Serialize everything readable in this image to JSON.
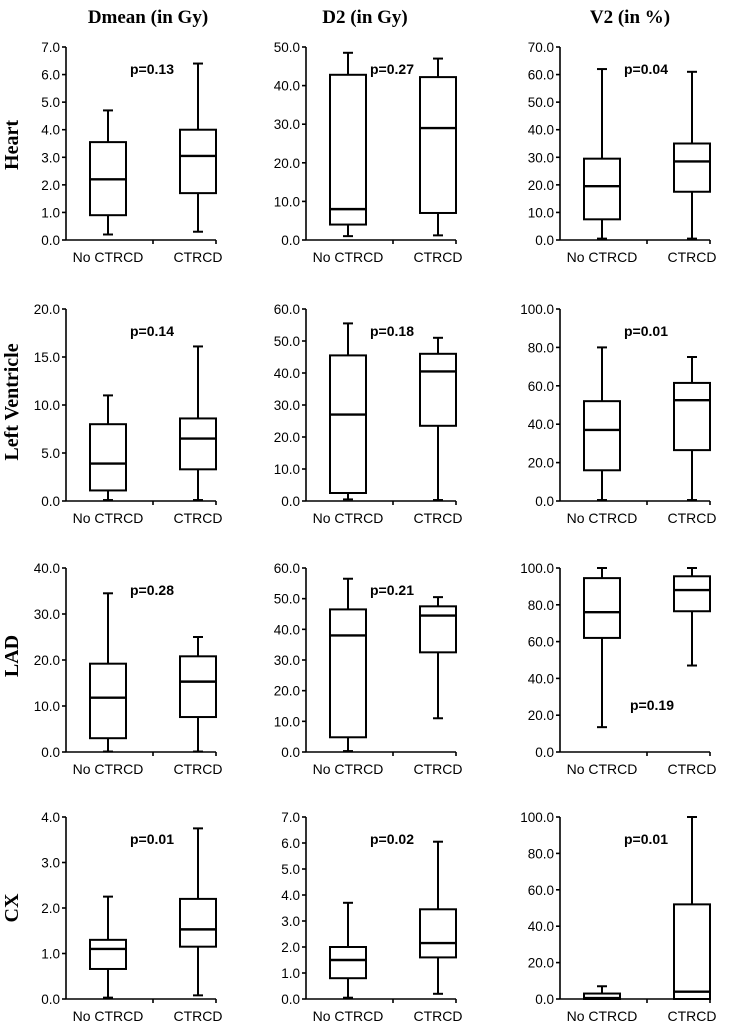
{
  "chart_data": {
    "type": "box",
    "title": "",
    "columns": [
      "Dmean (in Gy)",
      "D2 (in Gy)",
      "V2 (in %)"
    ],
    "rows": [
      "Heart",
      "Left Ventricle",
      "LAD",
      "CX"
    ],
    "categories": [
      "No CTRCD",
      "CTRCD"
    ],
    "panels": [
      {
        "row": "Heart",
        "column": "Dmean (in Gy)",
        "ylim": [
          0,
          7
        ],
        "yticks": [
          "0.0",
          "1.0",
          "2.0",
          "3.0",
          "4.0",
          "5.0",
          "6.0",
          "7.0"
        ],
        "p_label": "p=0.13",
        "p_position": "top-center",
        "boxes": [
          {
            "category": "No CTRCD",
            "min": 0.2,
            "q1": 0.9,
            "median": 2.2,
            "q3": 3.55,
            "max": 4.7
          },
          {
            "category": "CTRCD",
            "min": 0.3,
            "q1": 1.7,
            "median": 3.05,
            "q3": 4.0,
            "max": 6.4
          }
        ]
      },
      {
        "row": "Heart",
        "column": "D2 (in Gy)",
        "ylim": [
          0,
          50
        ],
        "yticks": [
          "0.0",
          "10.0",
          "20.0",
          "30.0",
          "40.0",
          "50.0"
        ],
        "p_label": "p=0.27",
        "p_position": "top-center",
        "boxes": [
          {
            "category": "No CTRCD",
            "min": 1.0,
            "q1": 4.0,
            "median": 8.0,
            "q3": 42.8,
            "max": 48.5
          },
          {
            "category": "CTRCD",
            "min": 1.2,
            "q1": 7.0,
            "median": 29.0,
            "q3": 42.2,
            "max": 47.0
          }
        ]
      },
      {
        "row": "Heart",
        "column": "V2 (in %)",
        "ylim": [
          0,
          70
        ],
        "yticks": [
          "0.0",
          "10.0",
          "20.0",
          "30.0",
          "40.0",
          "50.0",
          "60.0",
          "70.0"
        ],
        "p_label": "p=0.04",
        "p_position": "top-center",
        "boxes": [
          {
            "category": "No CTRCD",
            "min": 0.5,
            "q1": 7.5,
            "median": 19.5,
            "q3": 29.5,
            "max": 62.0
          },
          {
            "category": "CTRCD",
            "min": 0.5,
            "q1": 17.5,
            "median": 28.5,
            "q3": 35.0,
            "max": 61.0
          }
        ]
      },
      {
        "row": "Left Ventricle",
        "column": "Dmean (in Gy)",
        "ylim": [
          0,
          20
        ],
        "yticks": [
          "0.0",
          "5.0",
          "10.0",
          "15.0",
          "20.0"
        ],
        "p_label": "p=0.14",
        "p_position": "top-center",
        "boxes": [
          {
            "category": "No CTRCD",
            "min": 0.1,
            "q1": 1.1,
            "median": 3.9,
            "q3": 8.0,
            "max": 11.0
          },
          {
            "category": "CTRCD",
            "min": 0.1,
            "q1": 3.3,
            "median": 6.5,
            "q3": 8.6,
            "max": 16.1
          }
        ]
      },
      {
        "row": "Left Ventricle",
        "column": "D2 (in Gy)",
        "ylim": [
          0,
          60
        ],
        "yticks": [
          "0.0",
          "10.0",
          "20.0",
          "30.0",
          "40.0",
          "50.0",
          "60.0"
        ],
        "p_label": "p=0.18",
        "p_position": "top-center",
        "boxes": [
          {
            "category": "No CTRCD",
            "min": 0.5,
            "q1": 2.5,
            "median": 27.0,
            "q3": 45.5,
            "max": 55.5
          },
          {
            "category": "CTRCD",
            "min": 0.3,
            "q1": 23.5,
            "median": 40.5,
            "q3": 46.0,
            "max": 51.0
          }
        ]
      },
      {
        "row": "Left Ventricle",
        "column": "V2 (in %)",
        "ylim": [
          0,
          100
        ],
        "yticks": [
          "0.0",
          "20.0",
          "40.0",
          "60.0",
          "80.0",
          "100.0"
        ],
        "p_label": "p=0.01",
        "p_position": "top-center",
        "boxes": [
          {
            "category": "No CTRCD",
            "min": 0.5,
            "q1": 16.0,
            "median": 37.0,
            "q3": 52.0,
            "max": 80.0
          },
          {
            "category": "CTRCD",
            "min": 0.5,
            "q1": 26.5,
            "median": 52.5,
            "q3": 61.5,
            "max": 75.0
          }
        ]
      },
      {
        "row": "LAD",
        "column": "Dmean (in Gy)",
        "ylim": [
          0,
          40
        ],
        "yticks": [
          "0.0",
          "10.0",
          "20.0",
          "30.0",
          "40.0"
        ],
        "p_label": "p=0.28",
        "p_position": "top-center",
        "boxes": [
          {
            "category": "No CTRCD",
            "min": 0.1,
            "q1": 3.0,
            "median": 11.8,
            "q3": 19.2,
            "max": 34.5
          },
          {
            "category": "CTRCD",
            "min": 0.1,
            "q1": 7.6,
            "median": 15.3,
            "q3": 20.8,
            "max": 25.0
          }
        ]
      },
      {
        "row": "LAD",
        "column": "D2 (in Gy)",
        "ylim": [
          0,
          60
        ],
        "yticks": [
          "0.0",
          "10.0",
          "20.0",
          "30.0",
          "40.0",
          "50.0",
          "60.0"
        ],
        "p_label": "p=0.21",
        "p_position": "top-center",
        "boxes": [
          {
            "category": "No CTRCD",
            "min": 0.3,
            "q1": 4.8,
            "median": 38.0,
            "q3": 46.5,
            "max": 56.5
          },
          {
            "category": "CTRCD",
            "min": 11.0,
            "q1": 32.5,
            "median": 44.5,
            "q3": 47.5,
            "max": 50.5
          }
        ]
      },
      {
        "row": "LAD",
        "column": "V2 (in %)",
        "ylim": [
          0,
          100
        ],
        "yticks": [
          "0.0",
          "20.0",
          "40.0",
          "60.0",
          "80.0",
          "100.0"
        ],
        "p_label": "p=0.19",
        "p_position": "bottom-center",
        "boxes": [
          {
            "category": "No CTRCD",
            "min": 13.5,
            "q1": 62.0,
            "median": 76.0,
            "q3": 94.5,
            "max": 100.0
          },
          {
            "category": "CTRCD",
            "min": 47.0,
            "q1": 76.5,
            "median": 88.0,
            "q3": 95.5,
            "max": 100.0
          }
        ]
      },
      {
        "row": "CX",
        "column": "Dmean (in Gy)",
        "ylim": [
          0,
          4
        ],
        "yticks": [
          "0.0",
          "1.0",
          "2.0",
          "3.0",
          "4.0"
        ],
        "p_label": "p=0.01",
        "p_position": "top-center",
        "boxes": [
          {
            "category": "No CTRCD",
            "min": 0.03,
            "q1": 0.66,
            "median": 1.1,
            "q3": 1.3,
            "max": 2.25
          },
          {
            "category": "CTRCD",
            "min": 0.08,
            "q1": 1.15,
            "median": 1.53,
            "q3": 2.2,
            "max": 3.75
          }
        ]
      },
      {
        "row": "CX",
        "column": "D2 (in Gy)",
        "ylim": [
          0,
          7
        ],
        "yticks": [
          "0.0",
          "1.0",
          "2.0",
          "3.0",
          "4.0",
          "5.0",
          "6.0",
          "7.0"
        ],
        "p_label": "p=0.02",
        "p_position": "top-center",
        "boxes": [
          {
            "category": "No CTRCD",
            "min": 0.05,
            "q1": 0.8,
            "median": 1.5,
            "q3": 2.0,
            "max": 3.7
          },
          {
            "category": "CTRCD",
            "min": 0.2,
            "q1": 1.6,
            "median": 2.15,
            "q3": 3.45,
            "max": 6.05
          }
        ]
      },
      {
        "row": "CX",
        "column": "V2 (in %)",
        "ylim": [
          0,
          100
        ],
        "yticks": [
          "0.0",
          "20.0",
          "40.0",
          "60.0",
          "80.0",
          "100.0"
        ],
        "p_label": "p=0.01",
        "p_position": "top-center",
        "boxes": [
          {
            "category": "No CTRCD",
            "min": 0.0,
            "q1": 0.0,
            "median": 0.5,
            "q3": 3.0,
            "max": 7.0
          },
          {
            "category": "CTRCD",
            "min": 0.0,
            "q1": 0.0,
            "median": 4.0,
            "q3": 52.0,
            "max": 100.0
          }
        ]
      }
    ]
  }
}
